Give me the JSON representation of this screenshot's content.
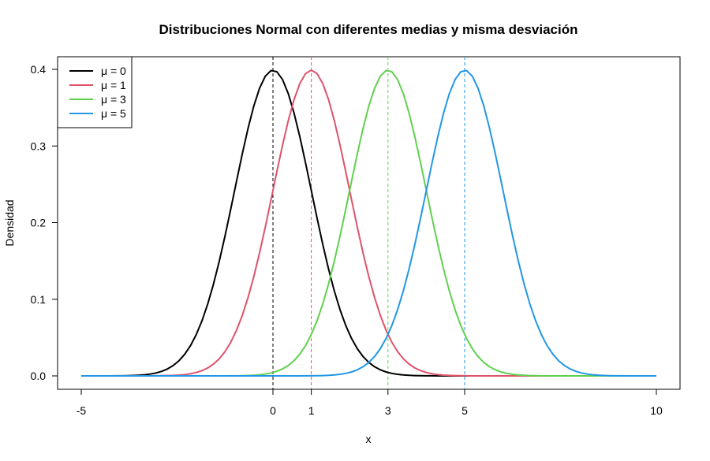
{
  "chart_data": {
    "type": "line",
    "title": "Distribuciones Normal con diferentes medias y misma desviación",
    "xlabel": "x",
    "ylabel": "Densidad",
    "xlim": [
      -5,
      10
    ],
    "ylim": [
      0,
      0.4
    ],
    "x_ticks": [
      -5,
      0,
      1,
      3,
      5,
      10
    ],
    "y_ticks": [
      0.0,
      0.1,
      0.2,
      0.3,
      0.4
    ],
    "y_tick_labels": [
      "0.0",
      "0.1",
      "0.2",
      "0.3",
      "0.4"
    ],
    "distribution": "normal",
    "sd": 1,
    "series": [
      {
        "name": "μ = 0",
        "mean": 0,
        "color": "#000000"
      },
      {
        "name": "μ = 1",
        "mean": 1,
        "color": "#DF536B"
      },
      {
        "name": "μ = 3",
        "mean": 3,
        "color": "#61D04F"
      },
      {
        "name": "μ = 5",
        "mean": 5,
        "color": "#2297E6"
      }
    ],
    "mean_lines": "dashed",
    "legend_position": "top-left",
    "grid": false
  }
}
